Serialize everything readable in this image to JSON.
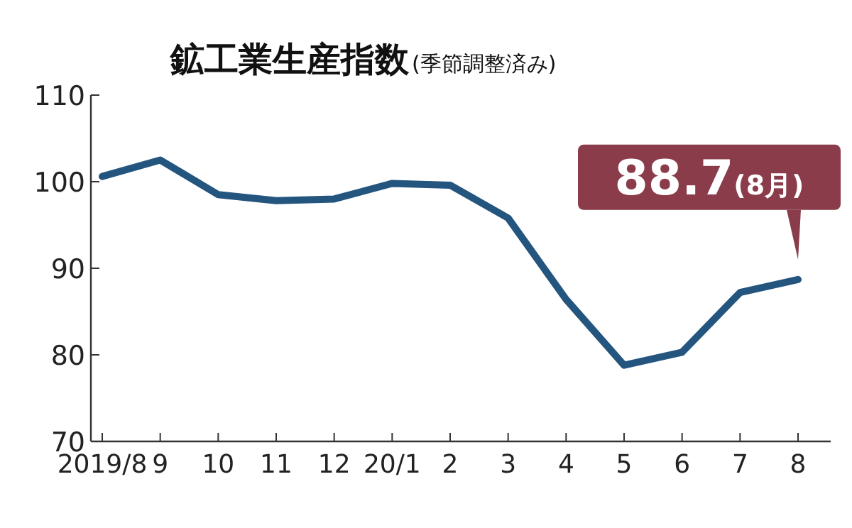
{
  "chart_data": {
    "type": "line",
    "title": "鉱工業生産指数",
    "subtitle": "(季節調整済み)",
    "categories": [
      "2019/8",
      "9",
      "10",
      "11",
      "12",
      "20/1",
      "2",
      "3",
      "4",
      "5",
      "6",
      "7",
      "8"
    ],
    "series": [
      {
        "color": "#23557f",
        "values": [
          100.6,
          102.5,
          98.5,
          97.8,
          98.0,
          99.8,
          99.6,
          95.8,
          86.4,
          78.8,
          80.3,
          87.2,
          88.7
        ]
      }
    ],
    "ylim": [
      70,
      110
    ],
    "yticks": [
      70,
      80,
      90,
      100,
      110
    ],
    "grid": false,
    "marker": "none",
    "line_style": "solid",
    "annotations": [
      {
        "text": "88.7(8月)",
        "x": "8",
        "y": 88.7
      }
    ]
  }
}
